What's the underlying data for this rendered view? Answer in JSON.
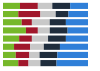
{
  "chart_data": {
    "type": "bar",
    "orientation": "horizontal",
    "stacked": true,
    "tick_labels": false,
    "categories": [
      null,
      null,
      null,
      null,
      null,
      null,
      null,
      null
    ],
    "xlim": [
      0,
      100
    ],
    "series": [
      {
        "color": "#76b82a",
        "values": [
          20,
          18,
          22,
          27,
          19,
          13,
          15,
          18
        ]
      },
      {
        "color": "#a0172b",
        "values": [
          21,
          26,
          12,
          14,
          15,
          19,
          16,
          12
        ]
      },
      {
        "color": "#c8c8c8",
        "values": [
          17,
          18,
          21,
          14,
          19,
          16,
          12,
          14
        ]
      },
      {
        "color": "#1f2d3d",
        "values": [
          21,
          15,
          19,
          21,
          21,
          19,
          21,
          19
        ]
      },
      {
        "color": "#2f7fd8",
        "values": [
          21,
          23,
          26,
          24,
          26,
          33,
          36,
          37
        ]
      }
    ]
  }
}
